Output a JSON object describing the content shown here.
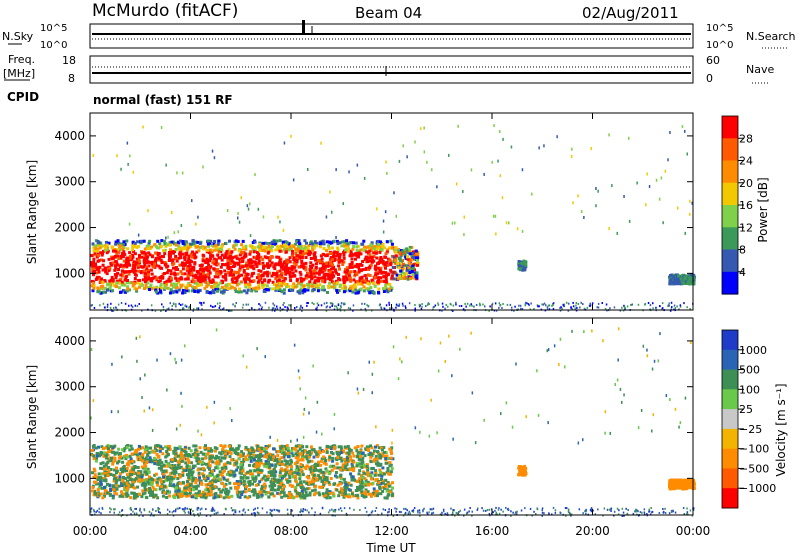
{
  "header": {
    "station": "McMurdo (fitACF)",
    "beam": "Beam 04",
    "date": "02/Aug/2011"
  },
  "noise_panel": {
    "left_label": "N.Sky",
    "right_label": "N.Search",
    "tick_high": "10^5",
    "tick_low": "10^0",
    "right_tick_high": "10^5",
    "right_tick_low": "10^0"
  },
  "freq_panel": {
    "left_label_line1": "Freq.",
    "left_label_line2": "[MHz]",
    "right_label": "Nave",
    "left_ticks": [
      "18",
      "8"
    ],
    "right_ticks": [
      "60",
      "0"
    ]
  },
  "cpid": {
    "label": "CPID",
    "text": "normal (fast) 151 RF"
  },
  "chart_data": [
    {
      "type": "heatmap",
      "name": "power",
      "ylabel": "Slant Range [km]",
      "ylim": [
        200,
        4500
      ],
      "yticks": [
        "1000",
        "2000",
        "3000",
        "4000"
      ],
      "xlim": [
        "00:00",
        "24:00"
      ],
      "colorbar": {
        "label": "Power [dB]",
        "ticks": [
          "4",
          "8",
          "12",
          "16",
          "20",
          "24",
          "28"
        ],
        "colors": [
          "#0000ff",
          "#3558b0",
          "#3b9a5a",
          "#7fd04a",
          "#f2c800",
          "#ff8c00",
          "#ff5a00",
          "#ff0000"
        ]
      },
      "regions": [
        {
          "t0": 0.0,
          "t1": 12.0,
          "r0": 600,
          "r1": 1750,
          "dominant": "red"
        },
        {
          "t0": 12.0,
          "t1": 13.0,
          "r0": 900,
          "r1": 1600,
          "dominant": "mixed"
        },
        {
          "t0": 17.0,
          "t1": 17.3,
          "r0": 1100,
          "r1": 1300,
          "dominant": "blue"
        },
        {
          "t0": 23.0,
          "t1": 24.0,
          "r0": 800,
          "r1": 1000,
          "dominant": "blue"
        }
      ]
    },
    {
      "type": "heatmap",
      "name": "velocity",
      "ylabel": "Slant Range [km]",
      "ylim": [
        200,
        4500
      ],
      "yticks": [
        "1000",
        "2000",
        "3000",
        "4000"
      ],
      "xlabel": "Time UT",
      "xticks": [
        "00:00",
        "04:00",
        "08:00",
        "12:00",
        "16:00",
        "20:00",
        "00:00"
      ],
      "xlim": [
        "00:00",
        "24:00"
      ],
      "colorbar": {
        "label": "Velocity [m s⁻¹]",
        "ticks": [
          "1000",
          "500",
          "100",
          "25",
          "−25",
          "−100",
          "−500",
          "−1000"
        ],
        "colors": [
          "#1e3cc8",
          "#2a64b4",
          "#3d8f55",
          "#6ac94a",
          "#c8c8c8",
          "#f2b400",
          "#ff8c00",
          "#ff5a00",
          "#ff0000"
        ]
      },
      "regions": [
        {
          "t0": 0.0,
          "t1": 12.0,
          "r0": 600,
          "r1": 1750,
          "dominant": "green"
        },
        {
          "t0": 17.0,
          "t1": 17.3,
          "r0": 1100,
          "r1": 1300,
          "dominant": "orange"
        },
        {
          "t0": 23.0,
          "t1": 24.0,
          "r0": 800,
          "r1": 1000,
          "dominant": "orange"
        }
      ]
    }
  ]
}
